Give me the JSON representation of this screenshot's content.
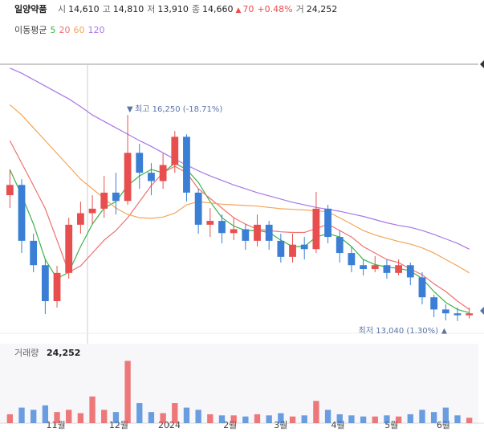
{
  "header": {
    "name": "일양약품",
    "items": [
      {
        "label": "시",
        "value": "14,610"
      },
      {
        "label": "고",
        "value": "14,810"
      },
      {
        "label": "저",
        "value": "13,910"
      },
      {
        "label": "종",
        "value": "14,660"
      }
    ],
    "change": "70",
    "change_pct": "+0.48%",
    "volume_label": "거",
    "volume_value": "24,252"
  },
  "chart_data": {
    "type": "candlestick",
    "ma_title": "이동평균",
    "annotations": {
      "high": "최고 16,250 (-18.71%)",
      "low": "최저 13,040 (1.30%)"
    },
    "categories": [
      null,
      null,
      null,
      null,
      null,
      null,
      null,
      null,
      null,
      null,
      null,
      null,
      null,
      null,
      null,
      null,
      null,
      null,
      null,
      null,
      null,
      null,
      null,
      null,
      null,
      null,
      null,
      null,
      null,
      null,
      null,
      null,
      null,
      null,
      null,
      null,
      null,
      null,
      null,
      null
    ],
    "open": [
      15000,
      15160,
      14290,
      13910,
      13350,
      13790,
      14540,
      14720,
      14790,
      15040,
      14910,
      15660,
      15350,
      15220,
      15470,
      15910,
      15040,
      14540,
      14600,
      14410,
      14470,
      14290,
      14540,
      14290,
      14040,
      14230,
      14160,
      14790,
      14350,
      14100,
      13910,
      13850,
      13910,
      13790,
      13910,
      13720,
      13410,
      13220,
      13160,
      13130
    ],
    "high": [
      15400,
      15250,
      14400,
      14000,
      13900,
      14650,
      14900,
      15000,
      15300,
      15350,
      16250,
      15800,
      15500,
      15650,
      16000,
      15950,
      15100,
      14800,
      14700,
      14650,
      14550,
      14700,
      14600,
      14400,
      14400,
      14350,
      15050,
      14850,
      14450,
      14200,
      14000,
      14050,
      14000,
      14000,
      13950,
      13800,
      13450,
      13300,
      13250,
      13250
    ],
    "low": [
      14800,
      14100,
      13800,
      13150,
      13250,
      13700,
      14400,
      14550,
      14650,
      14700,
      14850,
      15100,
      15000,
      15100,
      15350,
      14900,
      14400,
      14350,
      14250,
      14300,
      14150,
      14200,
      14150,
      13950,
      13950,
      14000,
      14100,
      14250,
      13950,
      13800,
      13750,
      13800,
      13700,
      13750,
      13600,
      13300,
      13100,
      13050,
      13040,
      13080
    ],
    "close": [
      15160,
      14290,
      13910,
      13350,
      13790,
      14540,
      14720,
      14790,
      15040,
      14910,
      15660,
      15350,
      15220,
      15470,
      15910,
      15040,
      14540,
      14600,
      14410,
      14470,
      14290,
      14540,
      14290,
      14040,
      14230,
      14160,
      14790,
      14350,
      14100,
      13910,
      13850,
      13910,
      13790,
      13910,
      13720,
      13410,
      13220,
      13160,
      13130,
      13160
    ],
    "up_color": "#e84e4e",
    "down_color": "#3a7fd5",
    "ylim": [
      12850,
      17040
    ],
    "series": [
      {
        "name": "5",
        "color": "#3bb44a",
        "values": [
          15400,
          15000,
          14550,
          14000,
          13700,
          13800,
          14200,
          14550,
          14800,
          14900,
          15150,
          15300,
          15400,
          15350,
          15500,
          15400,
          15200,
          14900,
          14650,
          14520,
          14450,
          14450,
          14420,
          14300,
          14200,
          14200,
          14350,
          14400,
          14350,
          14200,
          14000,
          13920,
          13880,
          13860,
          13820,
          13700,
          13500,
          13330,
          13220,
          13170
        ]
      },
      {
        "name": "20",
        "color": "#f07070",
        "values": [
          15850,
          15500,
          15150,
          14790,
          14300,
          13800,
          13900,
          14100,
          14300,
          14450,
          14650,
          14900,
          15150,
          15350,
          15450,
          15350,
          15100,
          14950,
          14800,
          14650,
          14550,
          14470,
          14450,
          14430,
          14420,
          14420,
          14480,
          14550,
          14450,
          14350,
          14200,
          14100,
          14000,
          13950,
          13850,
          13760,
          13620,
          13500,
          13350,
          13220
        ]
      },
      {
        "name": "60",
        "color": "#f3a55a",
        "values": [
          16410,
          16250,
          16050,
          15850,
          15650,
          15450,
          15250,
          15100,
          14950,
          14800,
          14700,
          14650,
          14640,
          14660,
          14720,
          14850,
          14900,
          14880,
          14860,
          14850,
          14840,
          14830,
          14810,
          14790,
          14780,
          14770,
          14760,
          14740,
          14650,
          14550,
          14450,
          14380,
          14330,
          14280,
          14240,
          14180,
          14100,
          14000,
          13900,
          13790
        ]
      },
      {
        "name": "120",
        "color": "#a977e6",
        "values": [
          16980,
          16900,
          16800,
          16700,
          16600,
          16500,
          16380,
          16250,
          16150,
          16050,
          15950,
          15850,
          15760,
          15660,
          15560,
          15470,
          15380,
          15300,
          15230,
          15160,
          15100,
          15040,
          14990,
          14940,
          14890,
          14850,
          14810,
          14780,
          14750,
          14710,
          14670,
          14620,
          14570,
          14530,
          14500,
          14450,
          14390,
          14320,
          14250,
          14160
        ]
      }
    ],
    "xticks": [
      {
        "value": 3.9,
        "label": "11월"
      },
      {
        "value": 9.24,
        "label": "12월"
      },
      {
        "value": 13.54,
        "label": "2024"
      },
      {
        "value": 18.7,
        "label": "2월"
      },
      {
        "value": 23.0,
        "label": "3월"
      },
      {
        "value": 27.85,
        "label": "4월"
      },
      {
        "value": 32.4,
        "label": "5월"
      },
      {
        "value": 36.8,
        "label": "6월"
      }
    ],
    "volume": {
      "title": "거래량",
      "value_label": "24,252",
      "ylim": [
        0,
        350000
      ],
      "values": [
        40000,
        70000,
        60000,
        80000,
        50000,
        60000,
        45000,
        120000,
        60000,
        50000,
        280000,
        90000,
        50000,
        45000,
        90000,
        70000,
        60000,
        40000,
        35000,
        35000,
        30000,
        40000,
        35000,
        45000,
        30000,
        35000,
        100000,
        60000,
        40000,
        35000,
        30000,
        30000,
        35000,
        30000,
        40000,
        60000,
        50000,
        70000,
        35000,
        24252
      ]
    }
  }
}
